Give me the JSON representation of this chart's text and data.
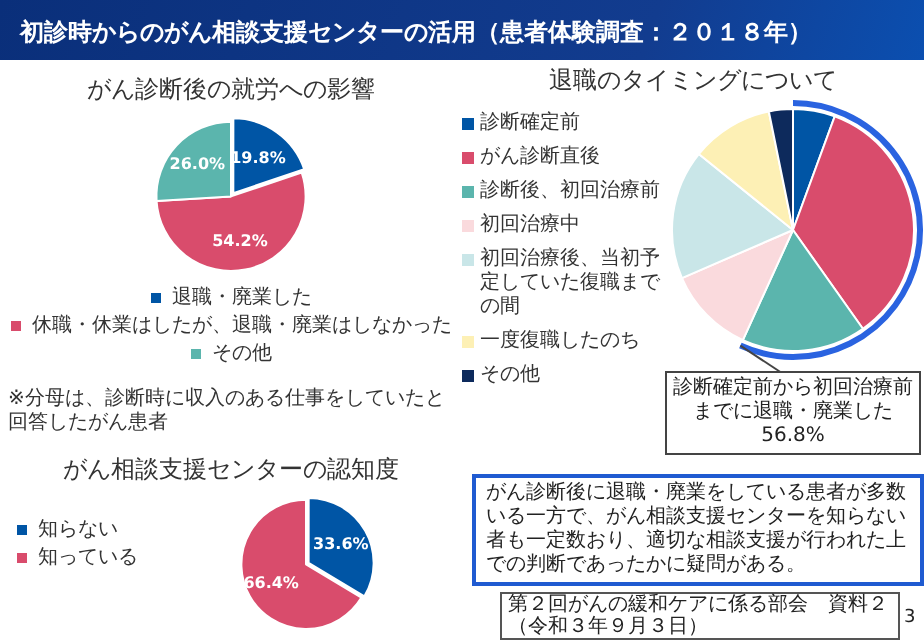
{
  "chart_data": [
    {
      "type": "other",
      "title": "初診時からのがん相談支援センターの活用（患者体験調査：２０１８年）",
      "annotations": [
        "がん診断後に退職・廃業をしている患者が多数いる一方で、がん相談支援センターを知らない者も一定数おり、適切な相談支援が行われた上での判断であったかに疑問がある。",
        "第２回がんの緩和ケアに係る部会　資料２",
        "（令和３年９月３日）",
        "3"
      ]
    },
    {
      "type": "pie",
      "title": "がん診断後の就労への影響",
      "categories": [
        "退職・廃業した",
        "休職・休業はしたが、退職・廃業はしなかった",
        "その他"
      ],
      "values": [
        19.8,
        54.2,
        26.0
      ],
      "colors": [
        "#0055a5",
        "#d94c6c",
        "#5bb5ad"
      ],
      "value_labels": [
        "19.8%",
        "54.2%",
        "26.0%"
      ],
      "legend": "bottom",
      "annotations": [
        "※分母は、診断時に収入のある仕事をしていたと回答したがん患者"
      ]
    },
    {
      "type": "pie",
      "title": "退職のタイミングについて",
      "categories": [
        "診断確定前",
        "がん診断直後",
        "診断後、初回治療前",
        "初回治療中",
        "初回治療後、当初予定していた復職までの間",
        "一度復職したのち",
        "その他"
      ],
      "values": [
        5.6,
        34.6,
        16.6,
        11.7,
        17.3,
        11.0,
        3.2
      ],
      "colors": [
        "#0055a5",
        "#d94c6c",
        "#5bb5ad",
        "#fadadd",
        "#c9e6e8",
        "#fdf0b5",
        "#0d2a5c"
      ],
      "legend": "left",
      "annotations": [
        "診断確定前から初回治療前までに退職・廃業した56.8%"
      ]
    },
    {
      "type": "pie",
      "title": "がん相談支援センターの認知度",
      "categories": [
        "知らない",
        "知っている"
      ],
      "values": [
        33.6,
        66.4
      ],
      "colors": [
        "#0055a5",
        "#d94c6c"
      ],
      "value_labels": [
        "33.6%",
        "66.4%"
      ],
      "legend": "left"
    }
  ]
}
